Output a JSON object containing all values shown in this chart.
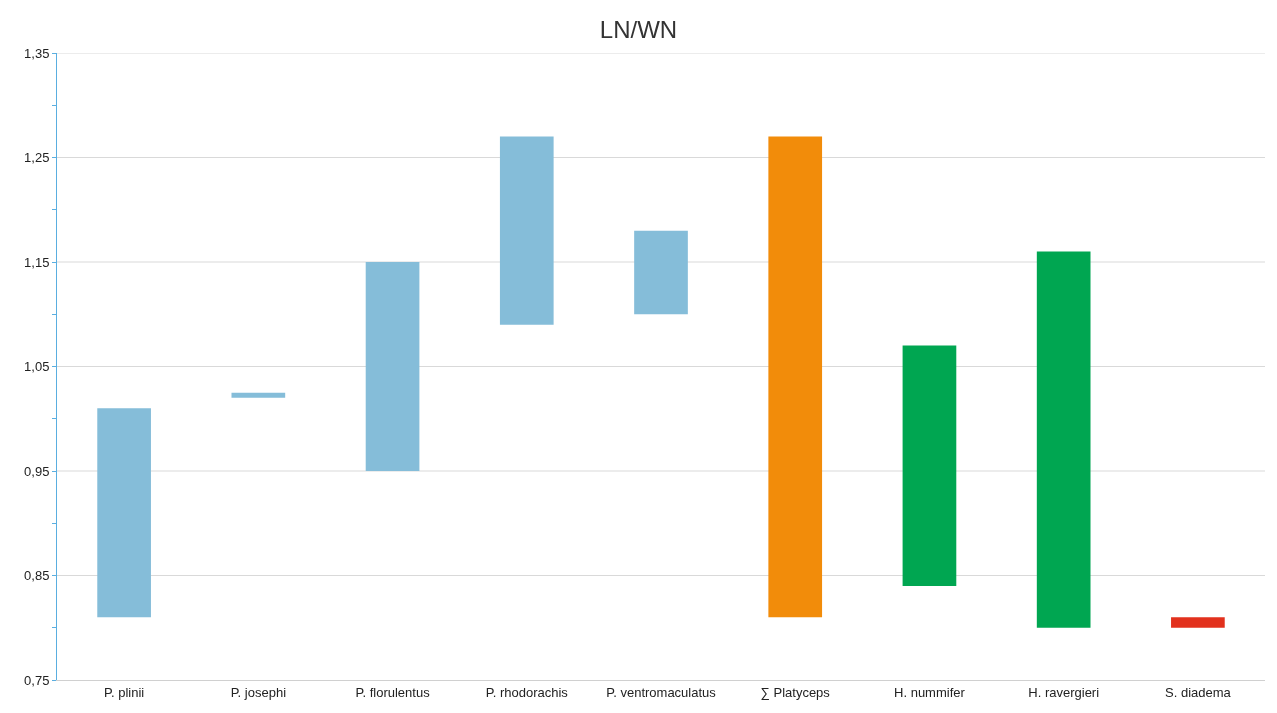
{
  "chart_data": {
    "type": "bar",
    "title": "LN/WN",
    "categories": [
      "P. plinii",
      "P. josephi",
      "P. florulentus",
      "P. rhodorachis",
      "P. ventromaculatus",
      "∑ Platyceps",
      "H. nummifer",
      "H. ravergieri",
      "S. diadema"
    ],
    "base": [
      0.81,
      1.02,
      0.95,
      1.09,
      1.1,
      0.81,
      0.84,
      0.8,
      0.8
    ],
    "values": [
      0.2,
      0.005,
      0.2,
      0.18,
      0.08,
      0.46,
      0.23,
      0.36,
      0.01
    ],
    "colors": [
      "#85bdd9",
      "#85bdd9",
      "#85bdd9",
      "#85bdd9",
      "#85bdd9",
      "#f28c0a",
      "#00a651",
      "#00a651",
      "#e2311d"
    ],
    "ylim": [
      0.75,
      1.35
    ],
    "yticks": [
      {
        "value": 0.75,
        "label": "0,75"
      },
      {
        "value": 0.8,
        "label": null
      },
      {
        "value": 0.85,
        "label": "0,85"
      },
      {
        "value": 0.9,
        "label": null
      },
      {
        "value": 0.95,
        "label": "0,95"
      },
      {
        "value": 1.0,
        "label": null
      },
      {
        "value": 1.05,
        "label": "1,05"
      },
      {
        "value": 1.1,
        "label": null
      },
      {
        "value": 1.15,
        "label": "1,15"
      },
      {
        "value": 1.2,
        "label": null
      },
      {
        "value": 1.25,
        "label": "1,25"
      },
      {
        "value": 1.3,
        "label": null
      },
      {
        "value": 1.35,
        "label": "1,35"
      }
    ],
    "grid": "y"
  }
}
